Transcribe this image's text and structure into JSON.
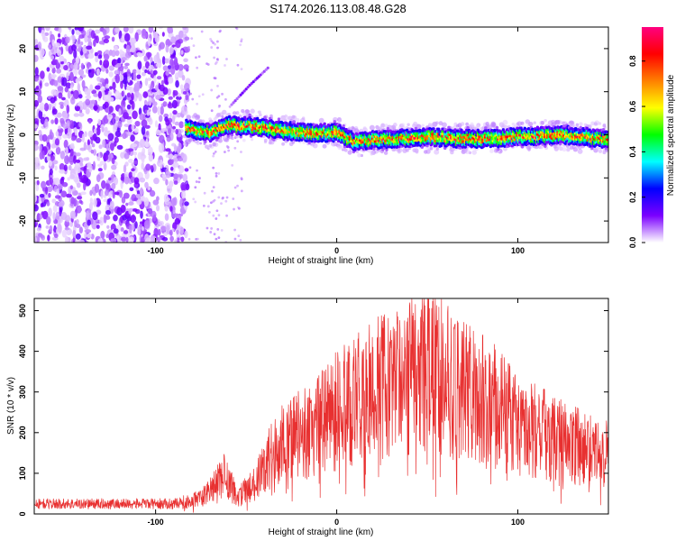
{
  "title": "S174.2026.113.08.48.G28",
  "chart_data": [
    {
      "type": "heatmap",
      "xlabel": "Height of straight line (km)",
      "ylabel": "Frequency (Hz)",
      "xlim": [
        -167,
        150
      ],
      "ylim": [
        -25,
        25
      ],
      "xticks": [
        -100,
        0,
        100
      ],
      "yticks": [
        -20,
        -10,
        0,
        10,
        20
      ],
      "colorbar": {
        "label": "Normalized spectral amplitude",
        "range": [
          0,
          0.95
        ],
        "ticks": [
          "0.0",
          "0.2",
          "0.4",
          "0.6",
          "0.8"
        ],
        "colors": [
          "#ffffff",
          "#7b00ff",
          "#0000ff",
          "#00ffff",
          "#00ff00",
          "#ffff00",
          "#ff8000",
          "#ff0000",
          "#ff0080"
        ]
      },
      "ridge": [
        {
          "x": -83,
          "y": 1.5
        },
        {
          "x": -70,
          "y": 0.5
        },
        {
          "x": -60,
          "y": 2.2
        },
        {
          "x": -45,
          "y": 2.0
        },
        {
          "x": -30,
          "y": 1.0
        },
        {
          "x": -15,
          "y": 0.5
        },
        {
          "x": 0,
          "y": 0.5
        },
        {
          "x": 10,
          "y": -1.5
        },
        {
          "x": 25,
          "y": -1.0
        },
        {
          "x": 50,
          "y": -0.5
        },
        {
          "x": 75,
          "y": -1.0
        },
        {
          "x": 100,
          "y": -0.5
        },
        {
          "x": 125,
          "y": 0.0
        },
        {
          "x": 150,
          "y": -1.0
        }
      ],
      "secondary_track": [
        {
          "x": -58,
          "y": 7.0
        },
        {
          "x": -48,
          "y": 11.5
        },
        {
          "x": -38,
          "y": 15.5
        }
      ]
    },
    {
      "type": "line",
      "xlabel": "Height of straight line (km)",
      "ylabel": "SNR (10 * v/v)",
      "xlim": [
        -167,
        150
      ],
      "ylim": [
        0,
        530
      ],
      "xticks": [
        -100,
        0,
        100
      ],
      "yticks": [
        0,
        100,
        200,
        300,
        400,
        500
      ],
      "color": "#e83030",
      "envelope": [
        {
          "x": -167,
          "y": 25
        },
        {
          "x": -90,
          "y": 25
        },
        {
          "x": -75,
          "y": 40
        },
        {
          "x": -62,
          "y": 100
        },
        {
          "x": -55,
          "y": 45
        },
        {
          "x": -45,
          "y": 80
        },
        {
          "x": -35,
          "y": 160
        },
        {
          "x": -25,
          "y": 200
        },
        {
          "x": -15,
          "y": 215
        },
        {
          "x": -5,
          "y": 250
        },
        {
          "x": 0,
          "y": 270
        },
        {
          "x": 10,
          "y": 295
        },
        {
          "x": 20,
          "y": 320
        },
        {
          "x": 30,
          "y": 340
        },
        {
          "x": 40,
          "y": 360
        },
        {
          "x": 50,
          "y": 375
        },
        {
          "x": 55,
          "y": 385
        },
        {
          "x": 60,
          "y": 360
        },
        {
          "x": 70,
          "y": 330
        },
        {
          "x": 80,
          "y": 300
        },
        {
          "x": 90,
          "y": 270
        },
        {
          "x": 100,
          "y": 240
        },
        {
          "x": 110,
          "y": 215
        },
        {
          "x": 120,
          "y": 195
        },
        {
          "x": 130,
          "y": 180
        },
        {
          "x": 140,
          "y": 170
        },
        {
          "x": 150,
          "y": 160
        }
      ]
    }
  ]
}
